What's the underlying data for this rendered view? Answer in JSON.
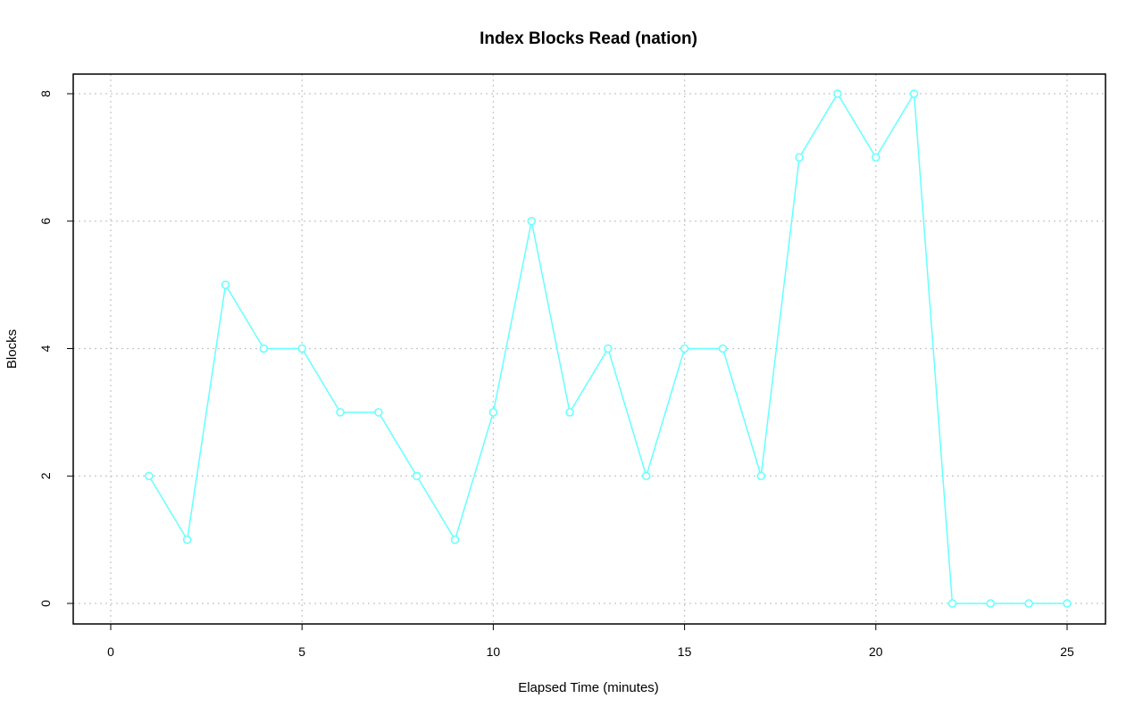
{
  "chart_data": {
    "type": "line",
    "title": "Index Blocks Read (nation)",
    "xlabel": "Elapsed Time (minutes)",
    "ylabel": "Blocks",
    "xlim": [
      0,
      25
    ],
    "ylim": [
      0,
      8
    ],
    "x_ticks": [
      0,
      5,
      10,
      15,
      20,
      25
    ],
    "y_ticks": [
      0,
      2,
      4,
      6,
      8
    ],
    "grid": true,
    "series": [
      {
        "color": "#66ffff",
        "marker": "open-circle",
        "x": [
          1,
          2,
          3,
          4,
          5,
          6,
          7,
          8,
          9,
          10,
          11,
          12,
          13,
          14,
          15,
          16,
          17,
          18,
          19,
          20,
          21,
          22,
          23,
          24,
          25
        ],
        "values": [
          2,
          1,
          5,
          4,
          4,
          3,
          3,
          2,
          1,
          3,
          6,
          3,
          4,
          2,
          4,
          4,
          2,
          7,
          8,
          7,
          8,
          0,
          0,
          0,
          0
        ]
      }
    ]
  }
}
